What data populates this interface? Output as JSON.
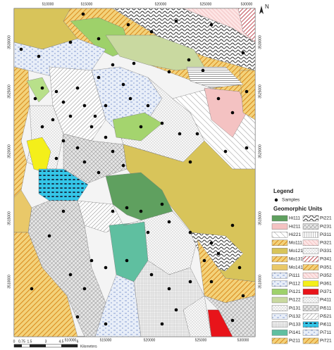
{
  "map": {
    "north": "N",
    "eastings_top": [
      "510000",
      "515000",
      "520000",
      "525000",
      "530000"
    ],
    "eastings_bottom": [
      "510000",
      "515000",
      "520000",
      "525000",
      "530000"
    ],
    "northings_left": [
      "3530000",
      "3525000",
      "3520000",
      "3515000",
      "3510000"
    ],
    "northings_right": [
      "3530000",
      "3525000",
      "3520000",
      "3515000",
      "3510000"
    ],
    "scale": {
      "ticks": [
        "0",
        "0.75",
        "1.5",
        "3",
        "4.5",
        "6"
      ],
      "unit": "Kilometers"
    }
  },
  "legend": {
    "title": "Legend",
    "samples": "Samples",
    "units_title": "Geomorphic Units",
    "units_left": [
      "Hi111",
      "Hi211",
      "Hi221",
      "Mo111",
      "Mo121",
      "Mo131",
      "Mo141",
      "Pi111",
      "Pi112",
      "Pi121",
      "Pi122",
      "Pi131",
      "Pi132",
      "Pi133",
      "Pi141",
      "Pi211"
    ],
    "units_right": [
      "Pi221",
      "Pi231",
      "Pi311",
      "Pi321",
      "Pi331",
      "Pi341",
      "Pi351",
      "Pi352",
      "Pi361",
      "Pi371",
      "Pi411",
      "Pi511",
      "Pi521",
      "Pi611",
      "Pi711",
      "Pi721"
    ]
  }
}
